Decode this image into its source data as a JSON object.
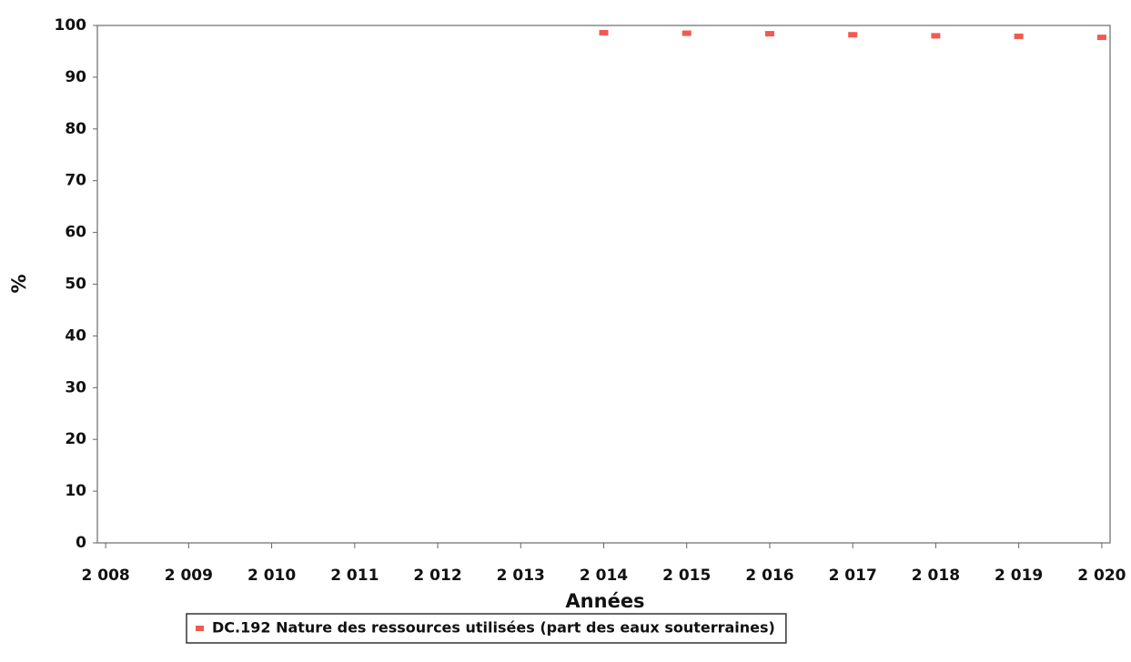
{
  "chart_data": {
    "type": "scatter",
    "x_label": "Années",
    "y_label": "%",
    "x": [
      2014,
      2015,
      2016,
      2017,
      2018,
      2019,
      2020
    ],
    "series": [
      {
        "name": "DC.192 Nature des ressources utilisées (part des eaux souterraines)",
        "color": "#f05a50",
        "values": [
          98.6,
          98.5,
          98.4,
          98.2,
          98.0,
          97.9,
          97.7
        ]
      }
    ],
    "xlim": [
      2007.9,
      2020.1
    ],
    "xticks": [
      {
        "value": 2008,
        "label": "2 008"
      },
      {
        "value": 2009,
        "label": "2 009"
      },
      {
        "value": 2010,
        "label": "2 010"
      },
      {
        "value": 2011,
        "label": "2 011"
      },
      {
        "value": 2012,
        "label": "2 012"
      },
      {
        "value": 2013,
        "label": "2 013"
      },
      {
        "value": 2014,
        "label": "2 014"
      },
      {
        "value": 2015,
        "label": "2 015"
      },
      {
        "value": 2016,
        "label": "2 016"
      },
      {
        "value": 2017,
        "label": "2 017"
      },
      {
        "value": 2018,
        "label": "2 018"
      },
      {
        "value": 2019,
        "label": "2 019"
      },
      {
        "value": 2020,
        "label": "2 020"
      }
    ],
    "ylim": [
      0,
      100
    ],
    "yticks": [
      0,
      10,
      20,
      30,
      40,
      50,
      60,
      70,
      80,
      90,
      100
    ],
    "grid": false,
    "legend": "bottom"
  }
}
